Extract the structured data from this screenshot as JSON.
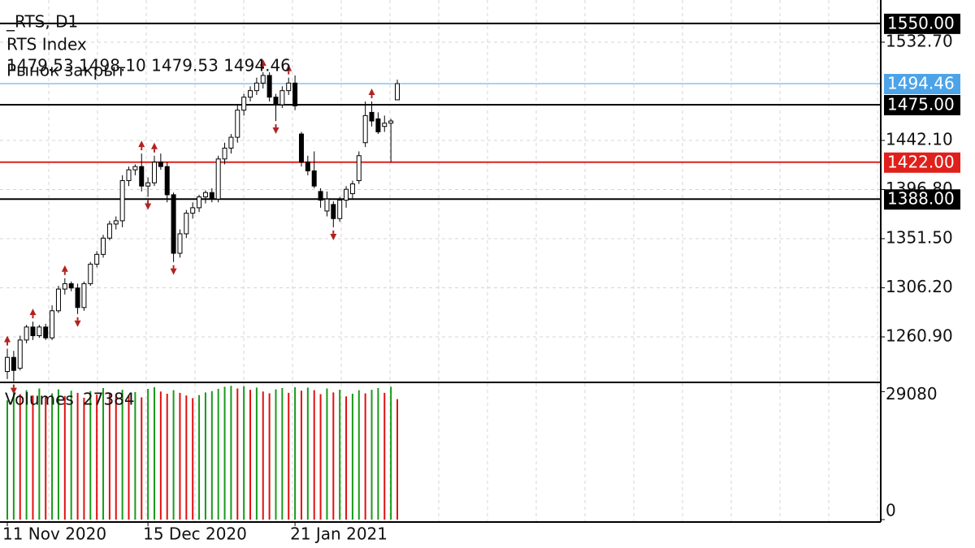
{
  "chart_data": {
    "type": "candlestick",
    "symbol": "_RTS, D1",
    "instrument": "RTS Index",
    "ohlc_text": "1479.53 1498.10 1479.53 1494.46",
    "status": "Рынок закрыт",
    "categories": [
      "11 Nov 2020",
      null,
      null,
      null,
      null,
      null,
      null,
      null,
      null,
      null,
      null,
      null,
      null,
      null,
      null,
      null,
      null,
      null,
      null,
      null,
      null,
      null,
      "15 Dec 2020",
      null,
      null,
      null,
      null,
      null,
      null,
      null,
      null,
      null,
      null,
      null,
      null,
      null,
      null,
      null,
      null,
      null,
      null,
      null,
      null,
      null,
      null,
      "21 Jan 2021",
      null,
      null,
      null,
      null,
      null,
      null,
      null,
      null,
      null,
      null,
      null,
      null,
      null,
      null,
      null,
      null
    ],
    "open": [
      1229,
      1242,
      1232,
      1258,
      1270,
      1262,
      1270,
      1260,
      1285,
      1305,
      1310,
      1306,
      1288,
      1310,
      1328,
      1337,
      1352,
      1365,
      1368,
      1405,
      1415,
      1418,
      1400,
      1403,
      1422,
      1418,
      1392,
      1338,
      1356,
      1375,
      1380,
      1390,
      1394,
      1388,
      1425,
      1435,
      1445,
      1470,
      1482,
      1488,
      1495,
      1502,
      1482,
      1475,
      1488,
      1495,
      1448,
      1422,
      1414,
      1395,
      1377,
      1383,
      1370,
      1387,
      1393,
      1405,
      1440,
      1468,
      1462,
      1455,
      1458,
      1479.53
    ],
    "high": [
      1250,
      1248,
      1262,
      1272,
      1275,
      1272,
      1273,
      1290,
      1308,
      1315,
      1312,
      1310,
      1312,
      1330,
      1340,
      1355,
      1368,
      1372,
      1410,
      1418,
      1420,
      1430,
      1408,
      1428,
      1430,
      1422,
      1394,
      1360,
      1378,
      1385,
      1392,
      1396,
      1398,
      1428,
      1440,
      1448,
      1475,
      1485,
      1492,
      1500,
      1505,
      1505,
      1485,
      1492,
      1500,
      1502,
      1450,
      1428,
      1432,
      1398,
      1395,
      1386,
      1390,
      1400,
      1405,
      1432,
      1478,
      1478,
      1468,
      1465,
      1462,
      1498.1
    ],
    "low": [
      1222,
      1220,
      1230,
      1255,
      1258,
      1260,
      1258,
      1258,
      1283,
      1300,
      1303,
      1282,
      1285,
      1308,
      1325,
      1334,
      1350,
      1360,
      1362,
      1400,
      1410,
      1395,
      1390,
      1400,
      1415,
      1385,
      1330,
      1334,
      1352,
      1370,
      1376,
      1384,
      1385,
      1385,
      1420,
      1430,
      1440,
      1465,
      1478,
      1484,
      1490,
      1478,
      1460,
      1472,
      1484,
      1470,
      1418,
      1410,
      1398,
      1380,
      1372,
      1362,
      1367,
      1380,
      1388,
      1402,
      1436,
      1455,
      1448,
      1450,
      1422,
      1479.53
    ],
    "close": [
      1242,
      1230,
      1258,
      1270,
      1262,
      1270,
      1260,
      1285,
      1305,
      1310,
      1306,
      1288,
      1310,
      1328,
      1337,
      1352,
      1365,
      1368,
      1405,
      1415,
      1418,
      1400,
      1403,
      1422,
      1418,
      1392,
      1338,
      1356,
      1375,
      1380,
      1390,
      1394,
      1388,
      1425,
      1435,
      1445,
      1470,
      1482,
      1488,
      1495,
      1502,
      1482,
      1475,
      1488,
      1495,
      1474,
      1422,
      1414,
      1400,
      1387,
      1388,
      1370,
      1387,
      1397,
      1402,
      1428,
      1465,
      1460,
      1450,
      1458,
      1460,
      1494.46
    ],
    "fractals_up": [
      0,
      4,
      9,
      21,
      23,
      40,
      44,
      57
    ],
    "fractals_down": [
      1,
      11,
      22,
      26,
      42,
      51
    ],
    "fractal_color": "#b22222",
    "ylim": [
      1219.7,
      1571.6
    ],
    "yticks": [
      {
        "value": 1532.7,
        "label": "1532.70"
      },
      {
        "value": 1442.1,
        "label": "1442.10"
      },
      {
        "value": 1396.8,
        "label": "1396.80"
      },
      {
        "value": 1351.5,
        "label": "1351.50"
      },
      {
        "value": 1306.2,
        "label": "1306.20"
      },
      {
        "value": 1260.9,
        "label": "1260.90"
      }
    ],
    "levels": [
      {
        "value": 1550,
        "label": "1550.00",
        "color": "#000000"
      },
      {
        "value": 1494.46,
        "label": "1494.46",
        "color": "#4da3e8"
      },
      {
        "value": 1475,
        "label": "1475.00",
        "color": "#000000"
      },
      {
        "value": 1422,
        "label": "1422.00",
        "color": "#e0201b"
      },
      {
        "value": 1388,
        "label": "1388.00",
        "color": "#000000"
      }
    ],
    "grid": true,
    "volume_name": "Volumes",
    "volumes": [
      27100,
      28900,
      28500,
      29400,
      28200,
      29800,
      27900,
      28700,
      29600,
      28100,
      29300,
      28800,
      27700,
      29200,
      28400,
      29900,
      28600,
      28100,
      29500,
      28300,
      29000,
      27800,
      29700,
      30100,
      29100,
      28600,
      29400,
      28800,
      28200,
      27600,
      28300,
      28900,
      29200,
      29700,
      30200,
      30400,
      29800,
      30300,
      29500,
      30000,
      29100,
      28700,
      29600,
      29900,
      28800,
      30100,
      29300,
      30000,
      29400,
      28500,
      29800,
      28900,
      29500,
      28000,
      28600,
      29400,
      28700,
      29500,
      29900,
      28800,
      30200,
      27384
    ],
    "volume_up_color": "#1a9a1a",
    "volume_down_color": "#e01010",
    "volume_ylim": [
      0,
      31000
    ],
    "volume_yticks": [
      29080,
      0
    ]
  }
}
